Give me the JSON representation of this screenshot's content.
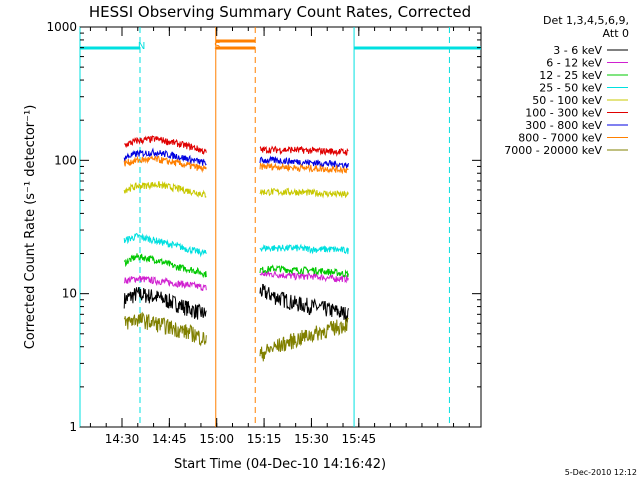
{
  "chart_data": {
    "type": "line",
    "title": "HESSI Observing Summary Count Rates, Corrected",
    "xlabel": "Start Time (04-Dec-10 14:16:42)",
    "ylabel": "Corrected Count Rate (s⁻¹ detector⁻¹)",
    "yscale": "log",
    "ylim": [
      1,
      1000
    ],
    "xlim_min": [
      0,
      127
    ],
    "x_units": "minutes after 14:16:42",
    "y_ticks": [
      "1",
      "10",
      "100",
      "1000"
    ],
    "x_ticks": [
      {
        "label": "14:30",
        "x": 13.3
      },
      {
        "label": "14:45",
        "x": 28.3
      },
      {
        "label": "15:00",
        "x": 43.3
      },
      {
        "label": "15:15",
        "x": 58.3
      },
      {
        "label": "15:30",
        "x": 73.3
      },
      {
        "label": "15:45",
        "x": 88.3
      }
    ],
    "legend": {
      "header": [
        "Det 1,3,4,5,6,9,",
        "Att 0"
      ],
      "placement": "right"
    },
    "series": [
      {
        "name": "3 - 6 keV",
        "color": "#000000",
        "segments": [
          {
            "x": [
              14,
              18,
              24,
              30,
              36,
              40
            ],
            "y": [
              9,
              10,
              9.5,
              8.5,
              7.5,
              7
            ]
          },
          {
            "x": [
              57,
              62,
              68,
              74,
              80,
              85
            ],
            "y": [
              10.5,
              9.5,
              8.5,
              8,
              7.5,
              7
            ]
          }
        ]
      },
      {
        "name": "6 - 12 keV",
        "color": "#d020d0",
        "segments": [
          {
            "x": [
              14,
              18,
              24,
              30,
              36,
              40
            ],
            "y": [
              12.5,
              13,
              12.5,
              12,
              11.5,
              11
            ]
          },
          {
            "x": [
              57,
              62,
              68,
              74,
              80,
              85
            ],
            "y": [
              14,
              14,
              13.5,
              13.5,
              13,
              13
            ]
          }
        ]
      },
      {
        "name": "12 - 25 keV",
        "color": "#00c800",
        "segments": [
          {
            "x": [
              14,
              18,
              24,
              30,
              36,
              40
            ],
            "y": [
              17,
              19,
              18,
              16,
              15,
              14
            ]
          },
          {
            "x": [
              57,
              62,
              68,
              74,
              80,
              85
            ],
            "y": [
              15,
              15.5,
              15,
              15,
              14.5,
              14
            ]
          }
        ]
      },
      {
        "name": "25 - 50 keV",
        "color": "#00e0e0",
        "segments": [
          {
            "x": [
              14,
              18,
              24,
              30,
              36,
              40
            ],
            "y": [
              25,
              27,
              25,
              23,
              21,
              20
            ]
          },
          {
            "x": [
              57,
              62,
              68,
              74,
              80,
              85
            ],
            "y": [
              22,
              22,
              22,
              21.5,
              21.5,
              21
            ]
          }
        ]
      },
      {
        "name": "50 - 100 keV",
        "color": "#c8c800",
        "segments": [
          {
            "x": [
              14,
              18,
              24,
              30,
              36,
              40
            ],
            "y": [
              60,
              64,
              66,
              62,
              58,
              55
            ]
          },
          {
            "x": [
              57,
              62,
              68,
              74,
              80,
              85
            ],
            "y": [
              58,
              58,
              58,
              57,
              56,
              55
            ]
          }
        ]
      },
      {
        "name": "100 - 300 keV",
        "color": "#e00000",
        "segments": [
          {
            "x": [
              14,
              18,
              24,
              30,
              36,
              40
            ],
            "y": [
              130,
              140,
              145,
              135,
              125,
              115
            ]
          },
          {
            "x": [
              57,
              62,
              68,
              74,
              80,
              85
            ],
            "y": [
              120,
              120,
              120,
              118,
              117,
              115
            ]
          }
        ]
      },
      {
        "name": "300 - 800 keV",
        "color": "#0000e0",
        "segments": [
          {
            "x": [
              14,
              18,
              24,
              30,
              36,
              40
            ],
            "y": [
              105,
              112,
              115,
              108,
              100,
              95
            ]
          },
          {
            "x": [
              57,
              62,
              68,
              74,
              80,
              85
            ],
            "y": [
              100,
              100,
              98,
              96,
              94,
              92
            ]
          }
        ]
      },
      {
        "name": "800 - 7000 keV",
        "color": "#ff8000",
        "segments": [
          {
            "x": [
              14,
              18,
              24,
              30,
              36,
              40
            ],
            "y": [
              95,
              100,
              102,
              96,
              90,
              85
            ]
          },
          {
            "x": [
              57,
              62,
              68,
              74,
              80,
              85
            ],
            "y": [
              90,
              90,
              88,
              87,
              86,
              85
            ]
          }
        ]
      },
      {
        "name": "7000 - 20000 keV",
        "color": "#808000",
        "segments": [
          {
            "x": [
              14,
              18,
              24,
              30,
              36,
              40
            ],
            "y": [
              6,
              6.5,
              6,
              5.5,
              5,
              4.5
            ]
          },
          {
            "x": [
              57,
              62,
              68,
              74,
              80,
              85
            ],
            "y": [
              3.5,
              4,
              4.5,
              5,
              5.5,
              6
            ]
          }
        ]
      }
    ],
    "annotations": [
      {
        "label": "N",
        "color": "#00e0e0",
        "x": 19.5,
        "y": 1000
      },
      {
        "label": "S",
        "color": "#ff8000",
        "x": 43.5,
        "y": 1000
      }
    ],
    "flags": {
      "night": {
        "color": "#00e0e0",
        "bars": [
          [
            0,
            19
          ],
          [
            86.8,
            127
          ]
        ],
        "solid_lines": [
          0,
          86.8
        ],
        "dashed_lines": [
          19,
          117
        ]
      },
      "saa": {
        "color": "#ff8000",
        "bars": [
          [
            43,
            55.5
          ]
        ],
        "solid_lines": [
          43
        ],
        "dashed_lines": [
          55.5
        ]
      }
    },
    "timestamp": "5-Dec-2010 12:12"
  }
}
